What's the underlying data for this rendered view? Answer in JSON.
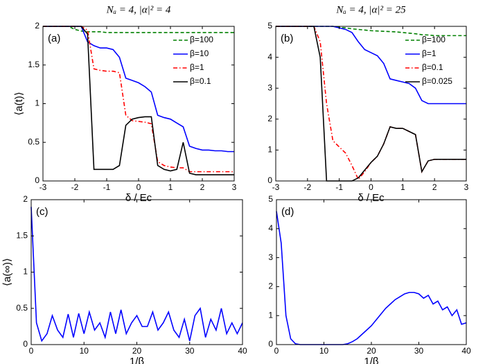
{
  "chart_data": [
    {
      "type": "line",
      "title": "Nₐ = 4, |α|² = 4",
      "annotation": "(a)",
      "xlabel": "δ / Ec",
      "ylabel": "⟨a(t)⟩",
      "x": [
        -3,
        -2.8,
        -2.6,
        -2.4,
        -2.2,
        -2,
        -1.8,
        -1.6,
        -1.4,
        -1.2,
        -1,
        -0.8,
        -0.6,
        -0.4,
        -0.2,
        0,
        0.2,
        0.4,
        0.6,
        0.8,
        1,
        1.2,
        1.4,
        1.6,
        1.8,
        2,
        2.2,
        2.4,
        2.6,
        2.8,
        3
      ],
      "series": [
        {
          "name": "β=100",
          "color": "#008000",
          "linestyle": "dashed",
          "values": [
            2,
            2,
            2,
            2,
            2,
            1.96,
            1.94,
            1.93,
            1.93,
            1.93,
            1.92,
            1.92,
            1.92,
            1.92,
            1.92,
            1.92,
            1.92,
            1.92,
            1.92,
            1.92,
            1.92,
            1.92,
            1.92,
            1.92,
            1.92,
            1.92,
            1.92,
            1.92,
            1.92,
            1.92,
            1.92
          ]
        },
        {
          "name": "β=10",
          "color": "#0000ff",
          "linestyle": "solid",
          "values": [
            2,
            2,
            2,
            2,
            2,
            2,
            2,
            1.8,
            1.75,
            1.72,
            1.72,
            1.7,
            1.6,
            1.33,
            1.3,
            1.27,
            1.22,
            1.15,
            0.85,
            0.82,
            0.8,
            0.75,
            0.7,
            0.45,
            0.42,
            0.4,
            0.4,
            0.39,
            0.39,
            0.38,
            0.38
          ]
        },
        {
          "name": "β=1",
          "color": "#ff0000",
          "linestyle": "dashdot",
          "values": [
            2,
            2,
            2,
            2,
            2,
            2,
            2,
            1.95,
            1.45,
            1.43,
            1.42,
            1.42,
            1.4,
            0.85,
            0.78,
            0.77,
            0.76,
            0.74,
            0.25,
            0.2,
            0.18,
            0.17,
            0.17,
            0.12,
            0.12,
            0.12,
            0.12,
            0.12,
            0.12,
            0.12,
            0.12
          ]
        },
        {
          "name": "β=0.1",
          "color": "#000000",
          "linestyle": "solid",
          "values": [
            2,
            2,
            2,
            2,
            2,
            2,
            2,
            1.9,
            0.15,
            0.15,
            0.15,
            0.15,
            0.2,
            0.72,
            0.8,
            0.82,
            0.83,
            0.83,
            0.2,
            0.15,
            0.13,
            0.15,
            0.5,
            0.1,
            0.08,
            0.08,
            0.08,
            0.08,
            0.08,
            0.08,
            0.08
          ]
        }
      ],
      "xlim": [
        -3,
        3
      ],
      "xticks": [
        -3,
        -2,
        -1,
        0,
        1,
        2,
        3
      ],
      "ylim": [
        0,
        2
      ],
      "yticks": [
        0,
        0.5,
        1,
        1.5,
        2
      ],
      "legend": "upper right",
      "grid": false
    },
    {
      "type": "line",
      "title": "Nₐ = 4, |α|² = 25",
      "annotation": "(b)",
      "xlabel": "δ / Ec",
      "x": [
        -3,
        -2.8,
        -2.6,
        -2.4,
        -2.2,
        -2,
        -1.8,
        -1.6,
        -1.4,
        -1.2,
        -1,
        -0.8,
        -0.6,
        -0.4,
        -0.2,
        0,
        0.2,
        0.4,
        0.6,
        0.8,
        1,
        1.2,
        1.4,
        1.6,
        1.8,
        2,
        2.2,
        2.4,
        2.6,
        2.8,
        3
      ],
      "series": [
        {
          "name": "β=100",
          "color": "#008000",
          "linestyle": "dashed",
          "values": [
            5,
            5,
            5,
            5,
            5,
            5,
            5,
            5,
            5,
            5,
            4.97,
            4.95,
            4.92,
            4.9,
            4.88,
            4.86,
            4.85,
            4.84,
            4.83,
            4.82,
            4.8,
            4.78,
            4.76,
            4.73,
            4.72,
            4.7,
            4.7,
            4.7,
            4.7,
            4.7,
            4.7
          ]
        },
        {
          "name": "β=1",
          "color": "#0000ff",
          "linestyle": "solid",
          "values": [
            5,
            5,
            5,
            5,
            5,
            5,
            5,
            5,
            5,
            5,
            4.95,
            4.9,
            4.8,
            4.5,
            4.25,
            4.15,
            4.05,
            3.8,
            3.3,
            3.25,
            3.2,
            3.15,
            3,
            2.6,
            2.5,
            2.5,
            2.5,
            2.5,
            2.5,
            2.5,
            2.5
          ]
        },
        {
          "name": "β=0.1",
          "color": "#ff0000",
          "linestyle": "dashdot",
          "values": [
            5,
            5,
            5,
            5,
            5,
            5,
            5,
            4.5,
            2.5,
            1.3,
            1.1,
            0.9,
            0.5,
            0.05,
            0.3,
            0.6,
            0.8,
            1.2,
            1.75,
            1.7,
            1.7,
            1.6,
            1.5,
            0.3,
            0.65,
            0.7,
            0.7,
            0.7,
            0.7,
            0.7,
            0.7
          ]
        },
        {
          "name": "β=0.025",
          "color": "#000000",
          "linestyle": "solid",
          "values": [
            5,
            5,
            5,
            5,
            5,
            5,
            5,
            4,
            0,
            0,
            0,
            0,
            0,
            0.1,
            0.35,
            0.6,
            0.8,
            1.2,
            1.75,
            1.7,
            1.7,
            1.6,
            1.5,
            0.3,
            0.65,
            0.7,
            0.7,
            0.7,
            0.7,
            0.7,
            0.7
          ]
        }
      ],
      "xlim": [
        -3,
        3
      ],
      "xticks": [
        -3,
        -2,
        -1,
        0,
        1,
        2,
        3
      ],
      "ylim": [
        0,
        5
      ],
      "yticks": [
        0,
        1,
        2,
        3,
        4,
        5
      ],
      "legend": "upper right",
      "grid": false
    },
    {
      "type": "line",
      "annotation": "(c)",
      "xlabel": "1/β",
      "ylabel": "⟨a(∞)⟩",
      "x": [
        0,
        1,
        2,
        3,
        4,
        5,
        6,
        7,
        8,
        9,
        10,
        11,
        12,
        13,
        14,
        15,
        16,
        17,
        18,
        19,
        20,
        21,
        22,
        23,
        24,
        25,
        26,
        27,
        28,
        29,
        30,
        31,
        32,
        33,
        34,
        35,
        36,
        37,
        38,
        39,
        40
      ],
      "series": [
        {
          "color": "#0000ff",
          "linestyle": "solid",
          "values": [
            1.9,
            0.3,
            0.05,
            0.15,
            0.4,
            0.2,
            0.1,
            0.42,
            0.1,
            0.43,
            0.15,
            0.45,
            0.2,
            0.3,
            0.1,
            0.45,
            0.15,
            0.48,
            0.15,
            0.3,
            0.4,
            0.25,
            0.25,
            0.45,
            0.2,
            0.3,
            0.45,
            0.2,
            0.1,
            0.35,
            0.05,
            0.4,
            0.5,
            0.1,
            0.35,
            0.2,
            0.5,
            0.15,
            0.3,
            0.15,
            0.3
          ]
        }
      ],
      "xlim": [
        0,
        40
      ],
      "xticks": [
        0,
        10,
        20,
        30,
        40
      ],
      "ylim": [
        0,
        2
      ],
      "yticks": [
        0,
        0.5,
        1,
        1.5,
        2
      ],
      "grid": false
    },
    {
      "type": "line",
      "annotation": "(d)",
      "xlabel": "1/β",
      "x": [
        0,
        1,
        2,
        3,
        4,
        5,
        6,
        7,
        8,
        9,
        10,
        11,
        12,
        13,
        14,
        15,
        16,
        17,
        18,
        19,
        20,
        21,
        22,
        23,
        24,
        25,
        26,
        27,
        28,
        29,
        30,
        31,
        32,
        33,
        34,
        35,
        36,
        37,
        38,
        39,
        40
      ],
      "series": [
        {
          "color": "#0000ff",
          "linestyle": "solid",
          "values": [
            4.6,
            3.5,
            1,
            0.2,
            0.03,
            0,
            0,
            0,
            0,
            0,
            0,
            0,
            0,
            0,
            0,
            0.03,
            0.1,
            0.2,
            0.35,
            0.5,
            0.65,
            0.85,
            1.05,
            1.25,
            1.4,
            1.55,
            1.65,
            1.75,
            1.8,
            1.8,
            1.75,
            1.6,
            1.7,
            1.4,
            1.5,
            1.2,
            1.3,
            1,
            1.2,
            0.7,
            0.75
          ]
        }
      ],
      "xlim": [
        0,
        40
      ],
      "xticks": [
        0,
        10,
        20,
        30,
        40
      ],
      "ylim": [
        0,
        5
      ],
      "yticks": [
        0,
        1,
        2,
        3,
        4,
        5
      ],
      "grid": false
    }
  ]
}
